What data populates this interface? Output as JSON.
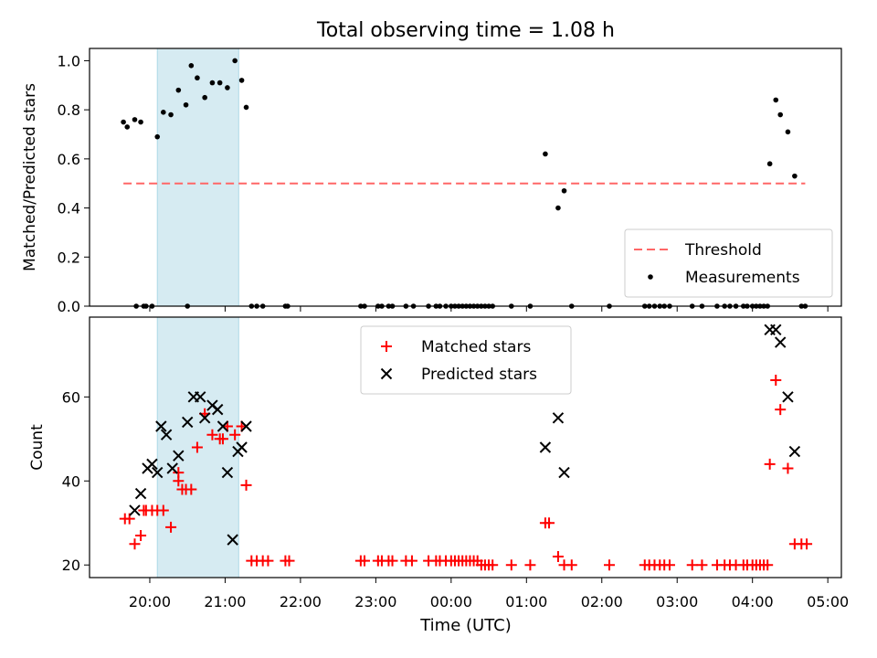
{
  "chart_data": {
    "title": "Total observing time = 1.08 h",
    "xlabel": "Time (UTC)",
    "x_unit": "hours after 00:00 UTC",
    "x_ticks": [
      {
        "t": -4,
        "label": "20:00"
      },
      {
        "t": -3,
        "label": "21:00"
      },
      {
        "t": -2,
        "label": "22:00"
      },
      {
        "t": -1,
        "label": "23:00"
      },
      {
        "t": 0,
        "label": "00:00"
      },
      {
        "t": 1,
        "label": "01:00"
      },
      {
        "t": 2,
        "label": "02:00"
      },
      {
        "t": 3,
        "label": "03:00"
      },
      {
        "t": 4,
        "label": "04:00"
      },
      {
        "t": 5,
        "label": "05:00"
      }
    ],
    "xlim": [
      -4.8,
      5.18
    ],
    "shaded_span": {
      "start": -3.9,
      "end": -2.82,
      "color": "#add8e6"
    },
    "panels": [
      {
        "type": "scatter",
        "ylabel": "Matched/Predicted stars",
        "ylim": [
          0,
          1.05
        ],
        "y_ticks": [
          {
            "v": 0,
            "label": "0.0"
          },
          {
            "v": 0.2,
            "label": "0.2"
          },
          {
            "v": 0.4,
            "label": "0.4"
          },
          {
            "v": 0.6,
            "label": "0.6"
          },
          {
            "v": 0.8,
            "label": "0.8"
          },
          {
            "v": 1.0,
            "label": "1.0"
          }
        ],
        "legend": {
          "placement": "lower-right",
          "entries": [
            "Threshold",
            "Measurements"
          ]
        },
        "threshold": {
          "name": "Threshold",
          "value": 0.5,
          "x_range": [
            -4.35,
            4.7
          ],
          "color": "#ff6666"
        },
        "series": [
          {
            "name": "Measurements",
            "marker": "dot",
            "color": "#000000",
            "x": [
              -4.35,
              -4.3,
              -4.2,
              -4.12,
              -4.05,
              -3.97,
              -3.9,
              -3.82,
              -3.72,
              -3.62,
              -3.52,
              -3.45,
              -3.37,
              -3.27,
              -3.17,
              -3.07,
              -2.97,
              -2.87,
              -2.78,
              -4.18,
              -4.08,
              -3.5,
              -2.72,
              -2.65,
              -2.58,
              -2.5,
              -2.2,
              -2.17,
              -1.2,
              -1.15,
              -0.97,
              -0.92,
              -0.83,
              -0.78,
              -0.6,
              -0.5,
              -0.3,
              -0.2,
              -0.15,
              -0.07,
              0.0,
              0.05,
              0.1,
              0.15,
              0.2,
              0.25,
              0.3,
              0.35,
              0.4,
              0.45,
              0.5,
              0.55,
              0.8,
              1.05,
              1.6,
              2.1,
              2.57,
              2.63,
              2.7,
              2.77,
              2.83,
              2.9,
              3.2,
              3.33,
              3.53,
              3.63,
              3.7,
              3.78,
              3.88,
              3.93,
              4.0,
              4.05,
              4.1,
              4.15,
              4.2,
              4.65,
              4.7,
              1.25,
              1.42,
              1.5,
              4.23,
              4.31,
              4.37,
              4.47,
              4.56
            ],
            "y": [
              0.75,
              0.73,
              0.76,
              0.75,
              0.0,
              0.0,
              0.69,
              0.79,
              0.78,
              0.88,
              0.82,
              0.98,
              0.93,
              0.85,
              0.91,
              0.91,
              0.89,
              1.0,
              0.92,
              0.0,
              0.0,
              0.0,
              0.81,
              0.0,
              0.0,
              0.0,
              0.0,
              0.0,
              0.0,
              0.0,
              0.0,
              0.0,
              0.0,
              0.0,
              0.0,
              0.0,
              0.0,
              0.0,
              0.0,
              0.0,
              0.0,
              0.0,
              0.0,
              0.0,
              0.0,
              0.0,
              0.0,
              0.0,
              0.0,
              0.0,
              0.0,
              0.0,
              0.0,
              0.0,
              0.0,
              0.0,
              0.0,
              0.0,
              0.0,
              0.0,
              0.0,
              0.0,
              0.0,
              0.0,
              0.0,
              0.0,
              0.0,
              0.0,
              0.0,
              0.0,
              0.0,
              0.0,
              0.0,
              0.0,
              0.0,
              0.0,
              0.0,
              0.62,
              0.4,
              0.47,
              0.58,
              0.84,
              0.78,
              0.71,
              0.53
            ]
          }
        ]
      },
      {
        "type": "scatter",
        "ylabel": "Count",
        "ylim": [
          17,
          79
        ],
        "y_ticks": [
          {
            "v": 20,
            "label": "20"
          },
          {
            "v": 40,
            "label": "40"
          },
          {
            "v": 60,
            "label": "60"
          }
        ],
        "legend": {
          "placement": "upper-center",
          "entries": [
            "Matched stars",
            "Predicted stars"
          ]
        },
        "series": [
          {
            "name": "Matched stars",
            "marker": "plus",
            "color": "#ff0000",
            "x": [
              -4.33,
              -4.27,
              -4.2,
              -4.12,
              -4.05,
              -3.97,
              -3.9,
              -3.82,
              -3.72,
              -3.62,
              -3.52,
              -3.45,
              -3.37,
              -3.27,
              -3.17,
              -3.07,
              -2.97,
              -2.87,
              -2.78,
              -4.08,
              -3.62,
              -3.57,
              -3.03,
              -2.72,
              -2.65,
              -2.58,
              -2.5,
              -2.43,
              -2.2,
              -2.15,
              -1.2,
              -1.15,
              -0.97,
              -0.92,
              -0.83,
              -0.78,
              -0.6,
              -0.52,
              -0.3,
              -0.2,
              -0.15,
              -0.07,
              0.0,
              0.05,
              0.1,
              0.15,
              0.2,
              0.25,
              0.3,
              0.35,
              0.4,
              0.45,
              0.5,
              0.55,
              0.8,
              1.05,
              1.6,
              2.1,
              2.57,
              2.63,
              2.7,
              2.77,
              2.83,
              2.9,
              3.2,
              3.33,
              3.53,
              3.63,
              3.7,
              3.78,
              3.88,
              3.93,
              4.0,
              4.05,
              4.1,
              4.15,
              4.2,
              4.65,
              4.72,
              1.25,
              1.3,
              1.42,
              1.5,
              4.23,
              4.31,
              4.37,
              4.47,
              4.56
            ],
            "y": [
              31,
              31,
              25,
              27,
              33,
              33,
              33,
              33,
              29,
              42,
              38,
              38,
              48,
              56,
              51,
              50,
              53,
              51,
              53,
              33,
              40,
              38,
              50,
              39,
              21,
              21,
              21,
              21,
              21,
              21,
              21,
              21,
              21,
              21,
              21,
              21,
              21,
              21,
              21,
              21,
              21,
              21,
              21,
              21,
              21,
              21,
              21,
              21,
              21,
              21,
              20,
              20,
              20,
              20,
              20,
              20,
              20,
              20,
              20,
              20,
              20,
              20,
              20,
              20,
              20,
              20,
              20,
              20,
              20,
              20,
              20,
              20,
              20,
              20,
              20,
              20,
              20,
              25,
              25,
              30,
              30,
              22,
              20,
              44,
              64,
              57,
              43,
              25
            ]
          },
          {
            "name": "Predicted stars",
            "marker": "x",
            "color": "#000000",
            "x": [
              -4.2,
              -4.12,
              -4.03,
              -3.97,
              -3.9,
              -3.85,
              -3.78,
              -3.7,
              -3.62,
              -3.5,
              -3.42,
              -3.33,
              -3.27,
              -3.17,
              -3.1,
              -3.03,
              -2.97,
              -2.9,
              -2.83,
              -2.78,
              -2.72,
              1.25,
              1.42,
              1.5,
              4.23,
              4.31,
              4.37,
              4.47,
              4.56
            ],
            "y": [
              33,
              37,
              43,
              44,
              42,
              53,
              51,
              43,
              46,
              54,
              60,
              60,
              55,
              58,
              57,
              53,
              42,
              26,
              47,
              48,
              53,
              48,
              55,
              42,
              76,
              76,
              73,
              60,
              47
            ]
          }
        ]
      }
    ]
  }
}
